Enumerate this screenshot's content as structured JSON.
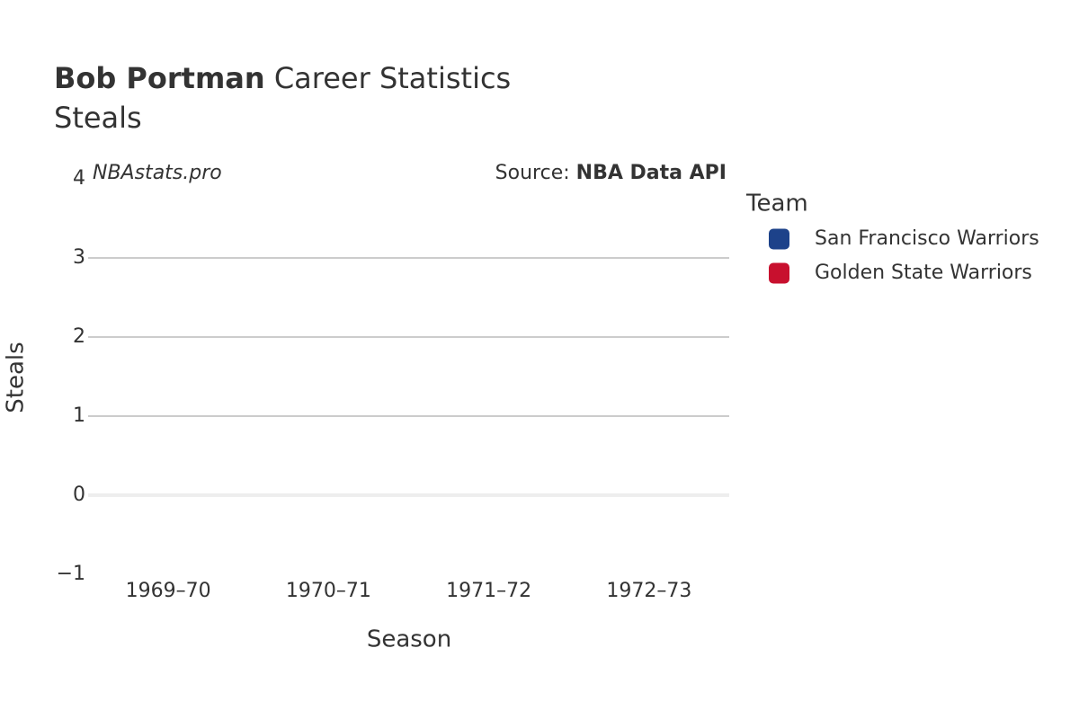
{
  "chart_data": {
    "type": "bar",
    "title": {
      "player": "Bob Portman",
      "text": "Career Statistics"
    },
    "subtitle": "Steals",
    "annotations": {
      "site": "NBAstats.pro",
      "source_prefix": "Source:",
      "source": "NBA Data API"
    },
    "x_label": "Season",
    "y_label": "Steals",
    "legend_title": "Team",
    "legend": "right",
    "categories": [
      "1969–70",
      "1970–71",
      "1971–72",
      "1972–73"
    ],
    "series": [
      {
        "name": "San Francisco Warriors",
        "color": "#1d428a",
        "values": [
          null,
          null,
          null,
          null
        ]
      },
      {
        "name": "Golden State Warriors",
        "color": "#c8102e",
        "values": [
          null,
          null,
          null,
          null
        ]
      }
    ],
    "ylim": [
      -1,
      4
    ],
    "yticks": [
      {
        "value": -1,
        "label": "−1"
      },
      0,
      1,
      2,
      3,
      4
    ],
    "grid": true
  }
}
